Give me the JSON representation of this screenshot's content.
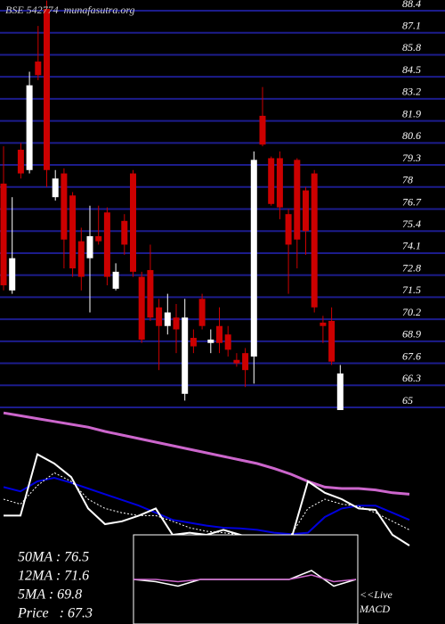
{
  "header": "BSE 542774  munafasutra.org",
  "chart_data": {
    "type": "candlestick",
    "ylim": [
      65,
      88.4
    ],
    "yticks": [
      88.4,
      87.1,
      85.8,
      84.5,
      83.2,
      81.9,
      80.6,
      79.3,
      78,
      76.7,
      75.4,
      74.1,
      72.8,
      71.5,
      70.2,
      68.9,
      67.6,
      66.3,
      65
    ],
    "grid": true,
    "colors": {
      "up": "#ffffff",
      "down": "#cc0000",
      "grid": "#1c1c8c"
    },
    "series": {
      "open": [
        78.2,
        71.9,
        80.2,
        79.0,
        85.4,
        88.5,
        77.4,
        78.8,
        77.5,
        74.8,
        73.8,
        75.1,
        76.5,
        72.0,
        76.0,
        78.8,
        72.7,
        73.1,
        70.9,
        69.8,
        70.3,
        65.8,
        69.1,
        71.4,
        68.8,
        69.8,
        69.3,
        67.8,
        68.2,
        68.0,
        82.2,
        79.7,
        79.7,
        76.4,
        79.6,
        77.8,
        78.8,
        70.0,
        70.1,
        64.8
      ],
      "high": [
        80.4,
        77.4,
        80.6,
        84.8,
        87.5,
        89.0,
        79.0,
        79.1,
        77.7,
        75.6,
        76.9,
        76.9,
        76.8,
        73.5,
        76.4,
        79.0,
        73.0,
        74.6,
        71.4,
        71.7,
        71.1,
        71.4,
        69.6,
        71.7,
        69.6,
        70.9,
        69.8,
        68.2,
        68.5,
        80.1,
        83.9,
        79.8,
        80.1,
        76.7,
        79.7,
        78.0,
        79.0,
        70.4,
        70.9,
        67.5
      ],
      "low": [
        71.9,
        71.7,
        78.5,
        78.8,
        84.3,
        78.0,
        77.2,
        73.2,
        72.7,
        71.9,
        70.6,
        74.6,
        72.2,
        71.9,
        74.0,
        72.7,
        68.8,
        70.1,
        67.2,
        69.3,
        68.2,
        65.4,
        68.2,
        69.6,
        68.2,
        68.2,
        68.0,
        67.4,
        66.2,
        66.4,
        80.4,
        76.9,
        76.1,
        71.7,
        73.2,
        74.0,
        70.6,
        68.8,
        67.5,
        64.8
      ],
      "close": [
        72.2,
        73.8,
        78.8,
        84.0,
        84.6,
        79.0,
        78.5,
        74.9,
        73.2,
        72.7,
        75.1,
        74.8,
        72.7,
        73.0,
        74.6,
        73.0,
        69.0,
        70.3,
        69.8,
        70.6,
        69.6,
        70.3,
        68.6,
        69.8,
        69.0,
        68.8,
        68.4,
        67.6,
        67.2,
        79.6,
        80.5,
        77.0,
        76.8,
        74.6,
        74.9,
        75.4,
        70.9,
        69.8,
        67.7,
        67.0
      ]
    }
  },
  "ma_panel": {
    "ylim": [
      0,
      100
    ],
    "lines": [
      {
        "color": "#cc66cc",
        "width": 3,
        "dashed": false,
        "values": [
          98,
          96,
          94,
          92,
          90,
          88,
          85,
          82.5,
          80,
          77.5,
          75,
          72.5,
          70,
          67.5,
          65,
          62.5,
          59,
          55,
          50,
          46,
          45,
          45,
          44,
          42,
          41
        ]
      },
      {
        "color": "#0000dd",
        "width": 2,
        "dashed": false,
        "values": [
          46,
          43,
          50,
          52.5,
          49,
          45,
          41,
          37,
          33,
          28,
          23,
          21,
          19,
          17.5,
          17,
          16,
          14,
          13,
          14,
          25,
          31,
          33,
          33,
          28,
          23
        ]
      },
      {
        "color": "#ffffff",
        "width": 1,
        "dashed": true,
        "values": [
          37.5,
          34,
          47,
          56,
          50,
          37.5,
          31,
          28,
          26,
          26,
          22,
          17.5,
          15,
          14,
          12.5,
          11,
          10,
          12.5,
          31,
          37.5,
          34,
          32.5,
          28,
          22,
          16
        ]
      },
      {
        "color": "#ffffff",
        "width": 2,
        "dashed": false,
        "values": [
          26,
          26,
          69,
          62.5,
          53,
          31,
          20,
          22,
          26,
          31,
          12.5,
          14,
          12.5,
          16,
          12.5,
          9,
          6,
          9,
          50,
          42,
          37.5,
          31,
          30,
          12.5,
          5
        ]
      }
    ],
    "labels": [
      "50MA : 76.5",
      "12MA : 71.6",
      "5MA : 69.8",
      "Price   : 67.3"
    ]
  },
  "macd": {
    "ylim": [
      -20,
      20
    ],
    "label": [
      "<<Live",
      "MACD"
    ],
    "lines": [
      {
        "color": "#ffffff",
        "values": [
          0,
          -1,
          -3,
          0,
          0,
          0,
          0,
          0,
          4,
          -3,
          0
        ]
      },
      {
        "color": "#cc66cc",
        "values": [
          0,
          0,
          -1,
          0,
          0,
          0,
          0,
          0,
          2,
          -1,
          0
        ]
      }
    ]
  }
}
